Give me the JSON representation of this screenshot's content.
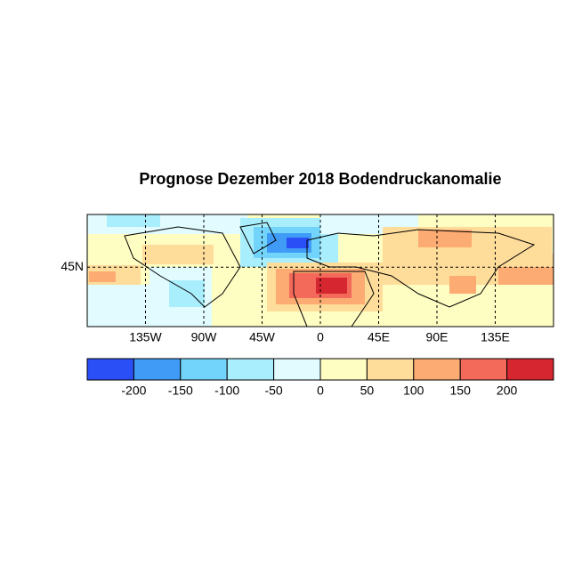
{
  "map": {
    "title": "Prognose Dezember 2018 Bodendruckanomalie",
    "xlim": [
      -180,
      180
    ],
    "ylim": [
      0,
      85
    ],
    "xticks": [
      {
        "value": -135,
        "label": "135W"
      },
      {
        "value": -90,
        "label": "90W"
      },
      {
        "value": -45,
        "label": "45W"
      },
      0,
      {
        "value": 45,
        "label": "45E"
      },
      {
        "value": 90,
        "label": "90E"
      },
      {
        "value": 135,
        "label": "135E"
      }
    ],
    "yticks": [
      {
        "value": 45,
        "label": "45N"
      }
    ],
    "grid": true
  },
  "colorbar": {
    "levels": [
      -200,
      -150,
      -100,
      -50,
      0,
      50,
      100,
      150,
      200
    ],
    "colors": [
      "#2b4ff6",
      "#3f9bf5",
      "#73d4fb",
      "#a9eefc",
      "#e1fbfe",
      "#fefdc2",
      "#fedc9a",
      "#fcac72",
      "#f3695a",
      "#d62630"
    ]
  }
}
